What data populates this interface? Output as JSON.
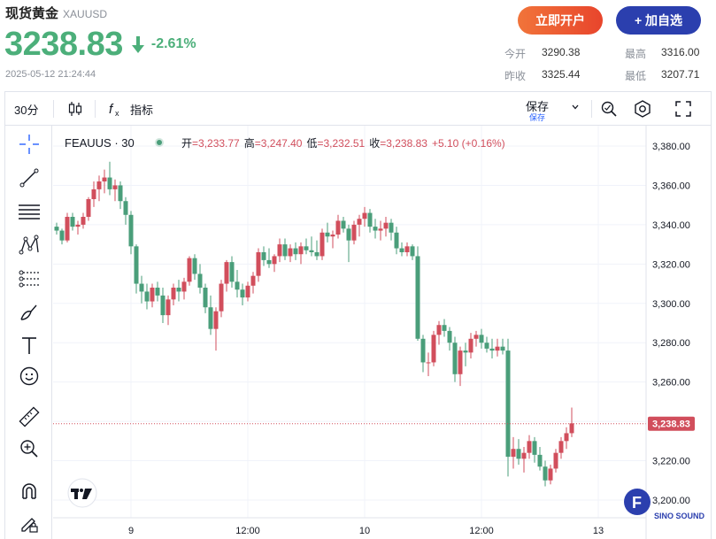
{
  "header": {
    "name": "现货黄金",
    "code": "XAUUSD",
    "price": "3238.83",
    "change_pct": "-2.61%",
    "timestamp": "2025-05-12 21:24:44",
    "open_button": "立即开户",
    "watch_button": "+ 加自选",
    "down_color": "#4caf7a"
  },
  "stats": {
    "open_label": "今开",
    "open_value": "3290.38",
    "high_label": "最高",
    "high_value": "3316.00",
    "prev_label": "昨收",
    "prev_value": "3325.44",
    "low_label": "最低",
    "low_value": "3207.71"
  },
  "toolbar": {
    "interval": "30分",
    "indicators": "指标",
    "save": "保存",
    "save_sub": "保存"
  },
  "chart_data": {
    "type": "candlestick",
    "symbol": "FEAUUS",
    "interval": "30",
    "legend": {
      "open_label": "开",
      "open": "=3,233.77",
      "high_label": "高",
      "high": "=3,247.40",
      "low_label": "低",
      "low": "=3,232.51",
      "close_label": "收",
      "close": "=3,238.83",
      "change": "+5.10 (+0.16%)"
    },
    "current_price_label": "3,238.83",
    "current_price": 3238.83,
    "y_ticks": [
      "3,380.00",
      "3,360.00",
      "3,340.00",
      "3,320.00",
      "3,300.00",
      "3,280.00",
      "3,260.00",
      "3,240.00",
      "3,220.00",
      "3,200.00"
    ],
    "y_tick_values": [
      3380,
      3360,
      3340,
      3320,
      3300,
      3280,
      3260,
      3240,
      3220,
      3200
    ],
    "x_ticks": [
      "9",
      "12:00",
      "10",
      "12:00",
      "13"
    ],
    "x_tick_index": [
      14,
      36,
      58,
      80,
      102
    ],
    "ylim": [
      3195,
      3388
    ],
    "up_color": "#d14e5c",
    "down_color": "#4a9e7a",
    "grid": true,
    "candles": [
      [
        3339,
        3341,
        3335,
        3337
      ],
      [
        3337,
        3338,
        3330,
        3332
      ],
      [
        3332,
        3346,
        3331,
        3344
      ],
      [
        3344,
        3346,
        3337,
        3339
      ],
      [
        3339,
        3342,
        3335,
        3340
      ],
      [
        3340,
        3346,
        3338,
        3344
      ],
      [
        3344,
        3354,
        3342,
        3353
      ],
      [
        3353,
        3362,
        3349,
        3358
      ],
      [
        3358,
        3365,
        3352,
        3362
      ],
      [
        3362,
        3368,
        3356,
        3364
      ],
      [
        3364,
        3372,
        3355,
        3358
      ],
      [
        3358,
        3363,
        3352,
        3360
      ],
      [
        3360,
        3362,
        3348,
        3352
      ],
      [
        3352,
        3354,
        3340,
        3345
      ],
      [
        3345,
        3347,
        3325,
        3329
      ],
      [
        3329,
        3330,
        3305,
        3310
      ],
      [
        3310,
        3314,
        3300,
        3306
      ],
      [
        3306,
        3310,
        3297,
        3301
      ],
      [
        3301,
        3310,
        3298,
        3308
      ],
      [
        3308,
        3311,
        3301,
        3304
      ],
      [
        3304,
        3308,
        3290,
        3294
      ],
      [
        3294,
        3304,
        3289,
        3302
      ],
      [
        3302,
        3310,
        3299,
        3308
      ],
      [
        3308,
        3312,
        3301,
        3306
      ],
      [
        3306,
        3313,
        3302,
        3311
      ],
      [
        3311,
        3324,
        3309,
        3323
      ],
      [
        3323,
        3325,
        3312,
        3315
      ],
      [
        3315,
        3320,
        3305,
        3308
      ],
      [
        3308,
        3310,
        3295,
        3298
      ],
      [
        3298,
        3304,
        3284,
        3287
      ],
      [
        3287,
        3298,
        3276,
        3296
      ],
      [
        3296,
        3312,
        3293,
        3310
      ],
      [
        3310,
        3322,
        3306,
        3321
      ],
      [
        3321,
        3324,
        3308,
        3311
      ],
      [
        3311,
        3317,
        3303,
        3307
      ],
      [
        3307,
        3310,
        3299,
        3303
      ],
      [
        3303,
        3311,
        3301,
        3309
      ],
      [
        3309,
        3316,
        3305,
        3314
      ],
      [
        3314,
        3328,
        3311,
        3326
      ],
      [
        3326,
        3329,
        3319,
        3322
      ],
      [
        3322,
        3328,
        3318,
        3320
      ],
      [
        3320,
        3325,
        3316,
        3324
      ],
      [
        3324,
        3333,
        3321,
        3330
      ],
      [
        3330,
        3333,
        3322,
        3324
      ],
      [
        3324,
        3330,
        3321,
        3328
      ],
      [
        3328,
        3331,
        3322,
        3325
      ],
      [
        3325,
        3331,
        3320,
        3329
      ],
      [
        3329,
        3333,
        3325,
        3327
      ],
      [
        3327,
        3334,
        3324,
        3326
      ],
      [
        3326,
        3332,
        3322,
        3324
      ],
      [
        3324,
        3338,
        3322,
        3336
      ],
      [
        3336,
        3341,
        3331,
        3334
      ],
      [
        3334,
        3337,
        3328,
        3335
      ],
      [
        3335,
        3345,
        3333,
        3342
      ],
      [
        3342,
        3344,
        3336,
        3338
      ],
      [
        3338,
        3340,
        3321,
        3332
      ],
      [
        3332,
        3342,
        3330,
        3340
      ],
      [
        3340,
        3345,
        3334,
        3343
      ],
      [
        3343,
        3349,
        3339,
        3346
      ],
      [
        3346,
        3348,
        3336,
        3339
      ],
      [
        3339,
        3343,
        3333,
        3337
      ],
      [
        3337,
        3342,
        3332,
        3338
      ],
      [
        3338,
        3344,
        3334,
        3341
      ],
      [
        3341,
        3343,
        3332,
        3336
      ],
      [
        3336,
        3339,
        3325,
        3328
      ],
      [
        3328,
        3331,
        3324,
        3326
      ],
      [
        3326,
        3331,
        3324,
        3329
      ],
      [
        3329,
        3330,
        3322,
        3324
      ],
      [
        3324,
        3329,
        3281,
        3282
      ],
      [
        3282,
        3284,
        3265,
        3270
      ],
      [
        3270,
        3275,
        3263,
        3270
      ],
      [
        3270,
        3286,
        3268,
        3284
      ],
      [
        3284,
        3291,
        3279,
        3289
      ],
      [
        3289,
        3292,
        3283,
        3286
      ],
      [
        3286,
        3288,
        3276,
        3280
      ],
      [
        3280,
        3283,
        3260,
        3264
      ],
      [
        3264,
        3278,
        3258,
        3276
      ],
      [
        3276,
        3280,
        3268,
        3275
      ],
      [
        3275,
        3285,
        3272,
        3282
      ],
      [
        3282,
        3286,
        3278,
        3284
      ],
      [
        3284,
        3287,
        3277,
        3280
      ],
      [
        3280,
        3283,
        3275,
        3277
      ],
      [
        3277,
        3282,
        3272,
        3276
      ],
      [
        3276,
        3282,
        3273,
        3278
      ],
      [
        3278,
        3282,
        3274,
        3276
      ],
      [
        3276,
        3282,
        3212,
        3222
      ],
      [
        3222,
        3232,
        3216,
        3226
      ],
      [
        3226,
        3231,
        3218,
        3221
      ],
      [
        3221,
        3227,
        3214,
        3224
      ],
      [
        3224,
        3233,
        3221,
        3230
      ],
      [
        3230,
        3232,
        3219,
        3223
      ],
      [
        3223,
        3227,
        3215,
        3217
      ],
      [
        3217,
        3220,
        3207,
        3210
      ],
      [
        3210,
        3218,
        3208,
        3216
      ],
      [
        3216,
        3226,
        3214,
        3224
      ],
      [
        3224,
        3232,
        3221,
        3230
      ],
      [
        3230,
        3237,
        3226,
        3234
      ],
      [
        3234,
        3247,
        3232,
        3239
      ]
    ]
  },
  "icons": {
    "crosshair": "crosshair-icon",
    "trendline": "trendline-icon",
    "fib": "fib-icon",
    "pattern": "pattern-icon",
    "forecast": "forecast-icon",
    "brush": "brush-icon",
    "text": "text-icon",
    "emoji": "emoji-icon",
    "ruler": "ruler-icon",
    "zoom": "zoom-in-icon",
    "magnet": "magnet-icon",
    "pencil-lock": "pencil-icon"
  },
  "watermark": "SINO SOUND"
}
